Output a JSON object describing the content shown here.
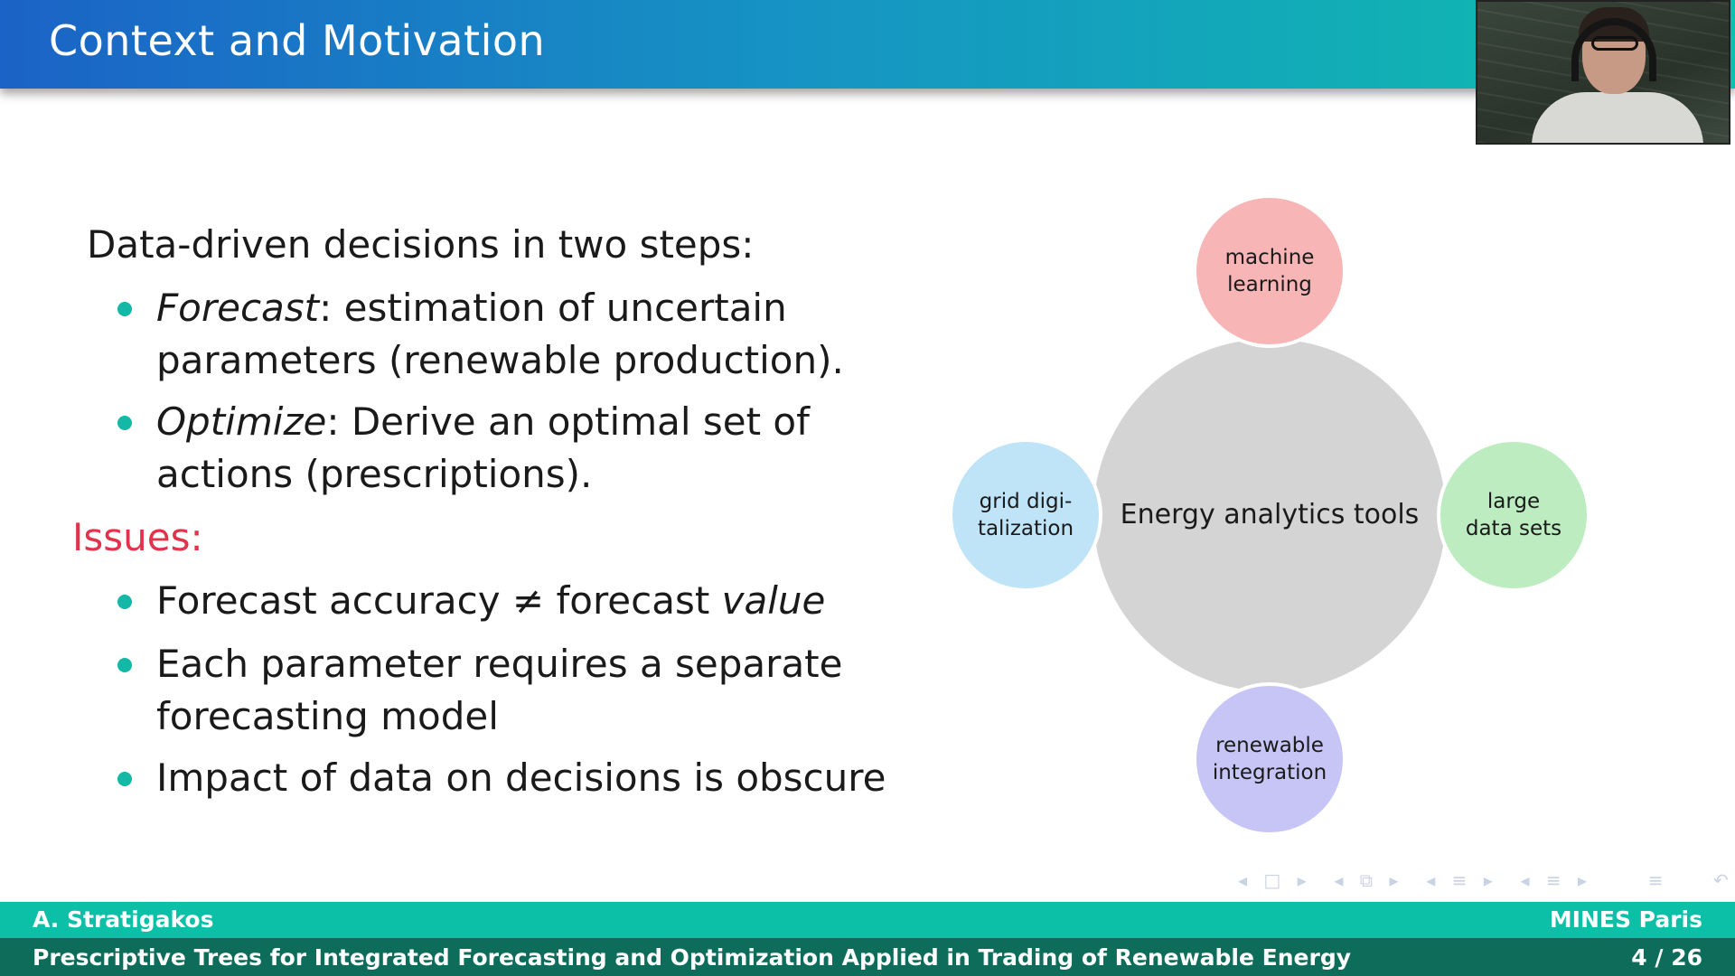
{
  "header": {
    "title": "Context and Motivation"
  },
  "left": {
    "intro": "Data-driven decisions in two steps:",
    "step1_term": "Forecast",
    "step1_text": ": estimation of uncertain",
    "step1_cont": "parameters (renewable production).",
    "step2_term": "Optimize",
    "step2_text": ": Derive an optimal set of",
    "step2_cont": "actions (prescriptions).",
    "issues_label": "Issues:",
    "issue1_a": "Forecast accuracy ≠ forecast ",
    "issue1_b": "value",
    "issue2": "Each parameter requires a separate",
    "issue2_cont": "forecasting model",
    "issue3": "Impact of data on decisions is obscure"
  },
  "diagram": {
    "center": "Energy analytics tools",
    "top_l1": "machine",
    "top_l2": "learning",
    "right_l1": "large",
    "right_l2": "data sets",
    "bottom_l1": "renewable",
    "bottom_l2": "integration",
    "left_l1": "grid digi-",
    "left_l2": "talization"
  },
  "footer": {
    "author": "A. Stratigakos",
    "institution": "MINES Paris",
    "talk_title": "Prescriptive Trees for Integrated Forecasting and Optimization Applied in Trading of Renewable Energy",
    "page": "4 / 26"
  },
  "icons": [
    "beamer-navigation-icons",
    "webcam-feed"
  ]
}
